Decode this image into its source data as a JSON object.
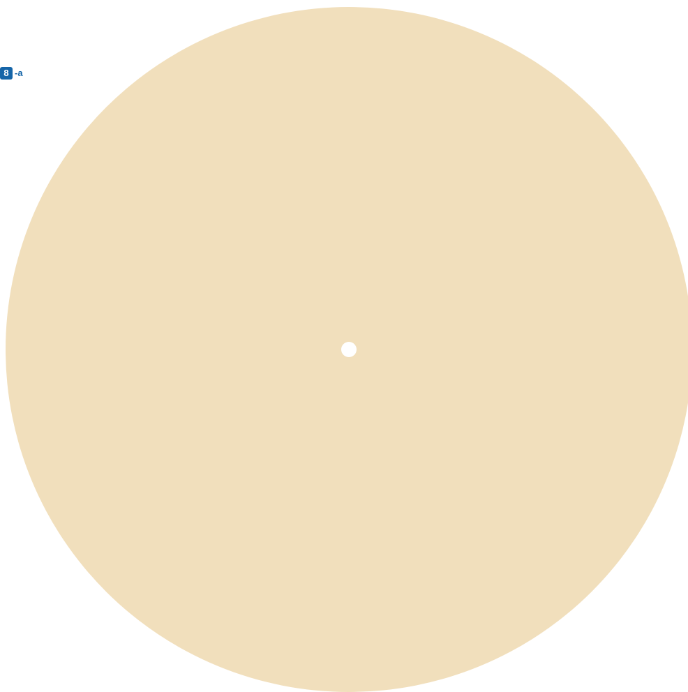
{
  "figure_label": {
    "number": "8",
    "suffix": "-a"
  },
  "colors": {
    "label_blue": "#1565a8",
    "disc_fill": "#f1dfbc",
    "center_hole": "#ffffff"
  },
  "icons": {
    "disc": "circle-disc-icon",
    "center_hole": "dot-icon"
  }
}
